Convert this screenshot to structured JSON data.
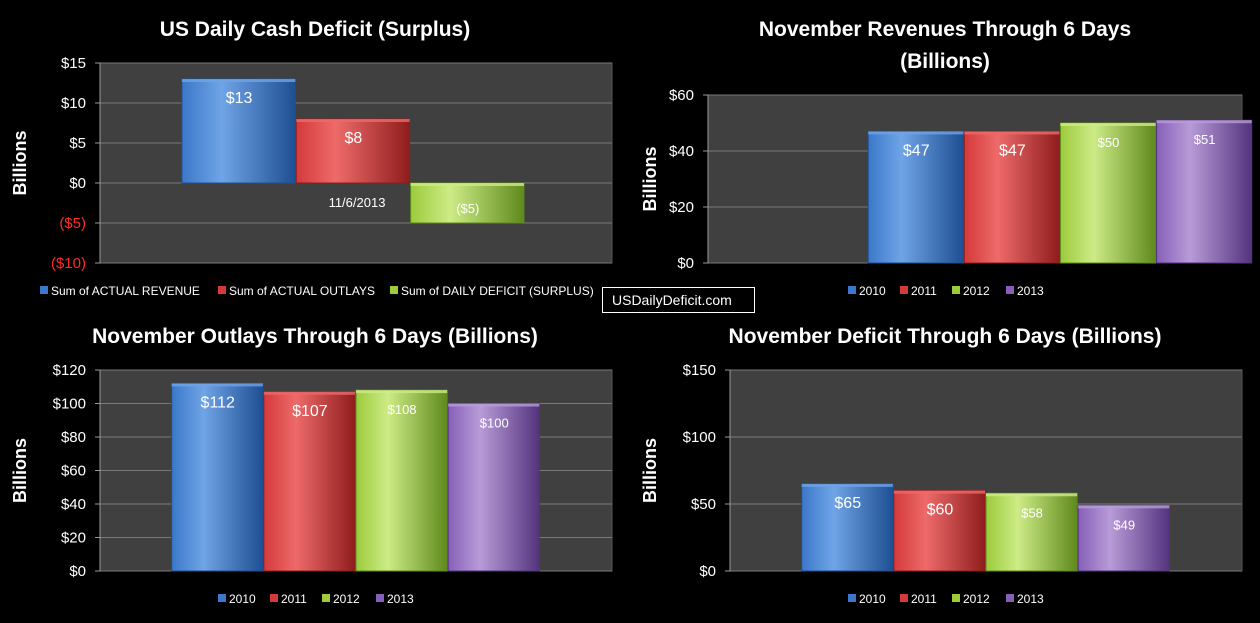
{
  "site_label": "USDailyDeficit.com",
  "palette": {
    "blue": [
      "#6fa4e6",
      "#3b78c9",
      "#1e4f92"
    ],
    "red": [
      "#ee6a6a",
      "#d43a3a",
      "#8f1d1d"
    ],
    "green": [
      "#cdeb86",
      "#9ccb3c",
      "#5f8a1c"
    ],
    "purple": [
      "#b89bd8",
      "#8660b8",
      "#54347e"
    ],
    "negative_text": "#ff2a2a"
  },
  "chart_data": [
    {
      "id": "daily-cash",
      "type": "bar",
      "title": "US Daily Cash Deficit (Surplus)",
      "subtitle": "",
      "ylabel": "Billions",
      "ylim": [
        -10,
        15
      ],
      "yticks": [
        15,
        10,
        5,
        0,
        -5,
        -10
      ],
      "ytick_labels": [
        "$15",
        "$10",
        "$5",
        "$0",
        "($5)",
        "($10)"
      ],
      "grid": true,
      "category_label": "11/6/2013",
      "series": [
        {
          "name": "Sum of ACTUAL REVENUE",
          "values": [
            13
          ],
          "labels": [
            "$13"
          ],
          "color": "blue"
        },
        {
          "name": "Sum of ACTUAL OUTLAYS",
          "values": [
            8
          ],
          "labels": [
            "$8"
          ],
          "color": "red"
        },
        {
          "name": "Sum of DAILY DEFICIT (SURPLUS)",
          "values": [
            -5
          ],
          "labels": [
            "($5)"
          ],
          "color": "green"
        }
      ],
      "legend_position": "bottom"
    },
    {
      "id": "revenues",
      "type": "bar",
      "title": "November Revenues Through 6 Days",
      "subtitle": "(Billions)",
      "ylabel": "Billions",
      "ylim": [
        0,
        60
      ],
      "yticks": [
        60,
        40,
        20,
        0
      ],
      "ytick_labels": [
        "$60",
        "$40",
        "$20",
        "$0"
      ],
      "grid": true,
      "categories": [
        "2010",
        "2011",
        "2012",
        "2013"
      ],
      "values": [
        47,
        47,
        50,
        51
      ],
      "labels": [
        "$47",
        "$47",
        "$50",
        "$51"
      ],
      "colors": [
        "blue",
        "red",
        "green",
        "purple"
      ],
      "legend_position": "bottom"
    },
    {
      "id": "outlays",
      "type": "bar",
      "title": "November Outlays Through 6 Days (Billions)",
      "subtitle": "",
      "ylabel": "Billions",
      "ylim": [
        0,
        120
      ],
      "yticks": [
        120,
        100,
        80,
        60,
        40,
        20,
        0
      ],
      "ytick_labels": [
        "$120",
        "$100",
        "$80",
        "$60",
        "$40",
        "$20",
        "$0"
      ],
      "grid": true,
      "categories": [
        "2010",
        "2011",
        "2012",
        "2013"
      ],
      "values": [
        112,
        107,
        108,
        100
      ],
      "labels": [
        "$112",
        "$107",
        "$108",
        "$100"
      ],
      "colors": [
        "blue",
        "red",
        "green",
        "purple"
      ],
      "legend_position": "bottom"
    },
    {
      "id": "deficit",
      "type": "bar",
      "title": "November Deficit Through 6 Days (Billions)",
      "subtitle": "",
      "ylabel": "Billions",
      "ylim": [
        0,
        150
      ],
      "yticks": [
        150,
        100,
        50,
        0
      ],
      "ytick_labels": [
        "$150",
        "$100",
        "$50",
        "$0"
      ],
      "grid": true,
      "categories": [
        "2010",
        "2011",
        "2012",
        "2013"
      ],
      "values": [
        65,
        60,
        58,
        49
      ],
      "labels": [
        "$65",
        "$60",
        "$58",
        "$49"
      ],
      "colors": [
        "blue",
        "red",
        "green",
        "purple"
      ],
      "legend_position": "bottom"
    }
  ]
}
